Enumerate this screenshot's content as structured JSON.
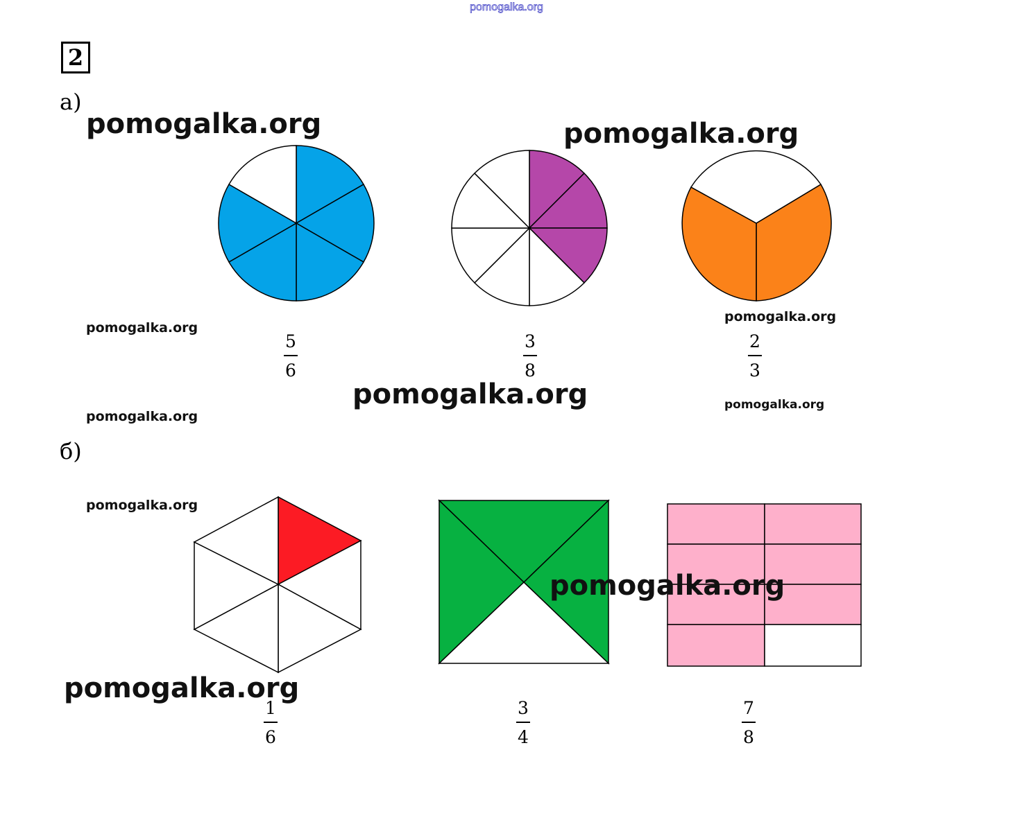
{
  "header": {
    "site": "pomogalka.org"
  },
  "task": {
    "number": "2"
  },
  "parts": [
    {
      "label": "а)"
    },
    {
      "label": "б)"
    }
  ],
  "watermark": {
    "text": "pomogalka.org"
  },
  "figures_a": [
    {
      "shape": "circle",
      "parts": 6,
      "shaded": 5,
      "color": "#05a3e8",
      "numerator": "5",
      "denominator": "6"
    },
    {
      "shape": "circle",
      "parts": 8,
      "shaded": 3,
      "color": "#b547a9",
      "numerator": "3",
      "denominator": "8"
    },
    {
      "shape": "circle",
      "parts": 3,
      "shaded": 2,
      "color": "#fb8219",
      "numerator": "2",
      "denominator": "3"
    }
  ],
  "figures_b": [
    {
      "shape": "hexagon",
      "parts": 6,
      "shaded": 1,
      "color": "#fc1b24",
      "numerator": "1",
      "denominator": "6"
    },
    {
      "shape": "square",
      "parts": 4,
      "shaded": 3,
      "color": "#07b141",
      "numerator": "3",
      "denominator": "4"
    },
    {
      "shape": "rectangle",
      "parts": 8,
      "shaded": 7,
      "color": "#feb0cb",
      "numerator": "7",
      "denominator": "8"
    }
  ]
}
